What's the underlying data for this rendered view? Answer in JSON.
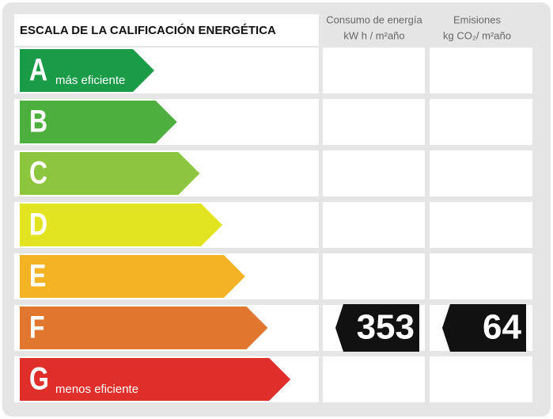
{
  "title": "ESCALA DE LA CALIFICACIÓN ENERGÉTICA",
  "columns": [
    {
      "label": "Consumo de energía",
      "unit": "kW h / m²año"
    },
    {
      "label": "Emisiones",
      "unit": "kg CO₂/ m²año"
    }
  ],
  "rows": [
    {
      "letter": "A",
      "label": "más eficiente",
      "color": "#1a9b48"
    },
    {
      "letter": "B",
      "color": "#4caf3e"
    },
    {
      "letter": "C",
      "color": "#8cc63f"
    },
    {
      "letter": "D",
      "color": "#e3e421"
    },
    {
      "letter": "E",
      "color": "#f3b324"
    },
    {
      "letter": "F",
      "color": "#e1762f",
      "energy": 353,
      "emissions": 64
    },
    {
      "letter": "G",
      "label": "menos eficiente",
      "color": "#e02f2a"
    }
  ]
}
